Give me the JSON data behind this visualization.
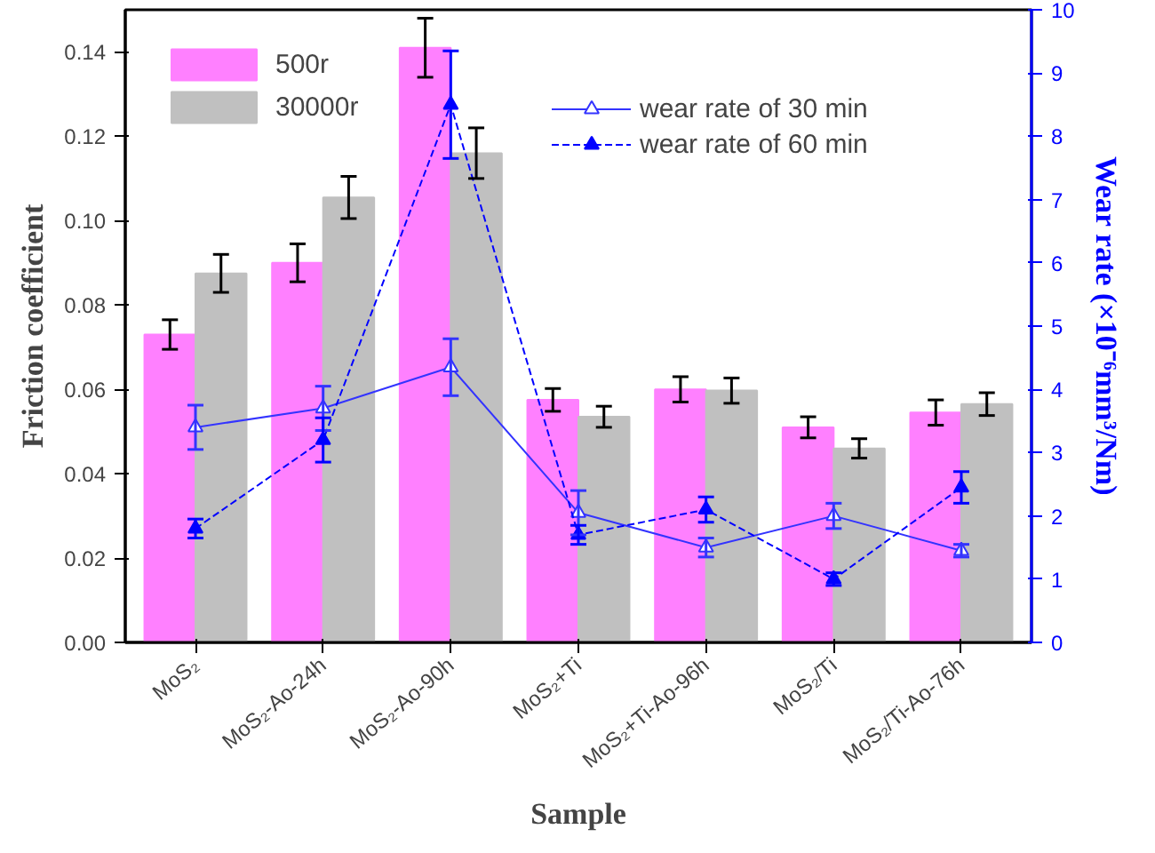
{
  "chart_data": {
    "type": "bar",
    "xlabel": "Sample",
    "ylabel": "Friction coefficient",
    "y2label": "Wear rate (×10⁻⁶mm³/Nm)",
    "categories": [
      "MoS₂",
      "MoS₂-Ao-24h",
      "MoS₂-Ao-90h",
      "MoS₂+Ti",
      "MoS₂+Ti-Ao-96h",
      "MoS₂/Ti",
      "MoS₂/Ti-Ao-76h"
    ],
    "series": [
      {
        "name": "500r",
        "color": "#ff80ff",
        "values": [
          0.073,
          0.09,
          0.141,
          0.0575,
          0.06,
          0.051,
          0.0545
        ],
        "errors": [
          0.0035,
          0.0045,
          0.007,
          0.0027,
          0.003,
          0.0025,
          0.003
        ]
      },
      {
        "name": "30000r",
        "color": "#c0c0c0",
        "values": [
          0.0875,
          0.1055,
          0.116,
          0.0535,
          0.0597,
          0.046,
          0.0565
        ],
        "errors": [
          0.0045,
          0.005,
          0.006,
          0.0025,
          0.003,
          0.0023,
          0.0027
        ]
      },
      {
        "name": "wear rate of 30 min",
        "type": "line",
        "axis": "y2",
        "color": "#3333ff",
        "marker": "triangle",
        "line_style": "solid",
        "values": [
          3.4,
          3.7,
          4.35,
          2.05,
          1.5,
          2.0,
          1.45
        ],
        "errors": [
          0.35,
          0.35,
          0.45,
          0.35,
          0.15,
          0.2,
          0.1
        ]
      },
      {
        "name": "wear rate of 60 min",
        "type": "line",
        "axis": "y2",
        "color": "#0000ff",
        "marker": "triangle",
        "line_style": "dashed",
        "values": [
          1.8,
          3.2,
          8.5,
          1.7,
          2.1,
          1.0,
          2.45
        ],
        "errors": [
          0.15,
          0.35,
          0.85,
          0.15,
          0.2,
          0.1,
          0.25
        ]
      }
    ],
    "ylim": [
      0,
      0.15
    ],
    "yticks": [
      {
        "value": 0,
        "label": "0.00"
      },
      {
        "value": 0.02,
        "label": "0.02"
      },
      {
        "value": 0.04,
        "label": "0.04"
      },
      {
        "value": 0.06,
        "label": "0.06"
      },
      {
        "value": 0.08,
        "label": "0.08"
      },
      {
        "value": 0.1,
        "label": "0.10"
      },
      {
        "value": 0.12,
        "label": "0.12"
      },
      {
        "value": 0.14,
        "label": "0.14"
      }
    ],
    "y2lim": [
      0,
      10
    ],
    "y2ticks": [
      0,
      1,
      2,
      3,
      4,
      5,
      6,
      7,
      8,
      9,
      10
    ],
    "legend": "top left",
    "grid": false
  }
}
